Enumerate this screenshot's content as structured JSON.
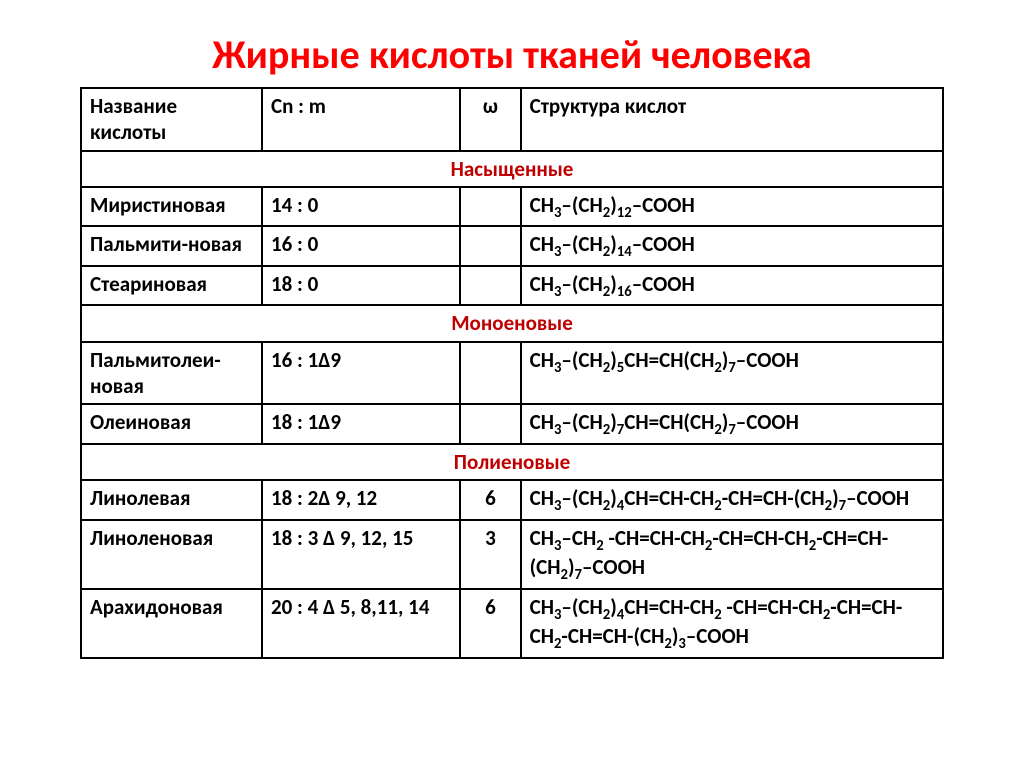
{
  "colors": {
    "title": "#ff0000",
    "section": "#c00000",
    "text": "#000000",
    "border": "#000000",
    "background": "#ffffff"
  },
  "typography": {
    "title_fontsize": 40,
    "cell_fontsize": 21,
    "font_family": "Calibri, Arial, sans-serif",
    "font_weight": 700
  },
  "layout": {
    "col_widths_pct": [
      21,
      23,
      7,
      49
    ],
    "page_padding": "30px 80px 20px 80px"
  },
  "title": "Жирные кислоты тканей человека",
  "headers": {
    "name": "Название кислоты",
    "cnm": "Cn : m",
    "omega": "ω",
    "structure": "Структура кислот"
  },
  "sections": [
    {
      "label": "Насыщенные",
      "rows": [
        {
          "name": "Миристиновая",
          "cnm": "14 : 0",
          "omega": "",
          "structure": "CH<sub>3</sub>–(CH<sub>2</sub>)<sub>12</sub>–COOH"
        },
        {
          "name": "Пальмити-новая",
          "cnm": "16 : 0",
          "omega": "",
          "structure": "CH<sub>3</sub>–(CH<sub>2</sub>)<sub>14</sub>–COOH"
        },
        {
          "name": "Стеариновая",
          "cnm": "18 : 0",
          "omega": "",
          "structure": "CH<sub>3</sub>–(CH<sub>2</sub>)<sub>16</sub>–COOH"
        }
      ]
    },
    {
      "label": "Моноеновые",
      "rows": [
        {
          "name": "Пальмитолеи-новая",
          "cnm": "16 : 1Δ9",
          "omega": "",
          "structure": "CH<sub>3</sub>–(CH<sub>2</sub>)<sub>5</sub>CH=CH(CH<sub>2</sub>)<sub>7</sub>–COOH"
        },
        {
          "name": "Олеиновая",
          "cnm": "18 : 1Δ9",
          "omega": "",
          "structure": "CH<sub>3</sub>–(CH<sub>2</sub>)<sub>7</sub>CH=CH(CH<sub>2</sub>)<sub>7</sub>–COOH"
        }
      ]
    },
    {
      "label": "Полиеновые",
      "rows": [
        {
          "name": "Линолевая",
          "cnm": "18 : 2Δ 9, 12",
          "omega": "6",
          "structure": "CH<sub>3</sub>–(CH<sub>2</sub>)<sub>4</sub>CH=CH-CH<sub>2</sub>-CH=CH-(CH<sub>2</sub>)<sub>7</sub>–COOH"
        },
        {
          "name": "Линоленовая",
          "cnm": "18 : 3 Δ 9, 12, 15",
          "omega": "3",
          "structure": "CH<sub>3</sub>–CH<sub>2</sub> -CH=CH-CH<sub>2</sub>-CH=CH-CH<sub>2</sub>-CH=CH-(CH<sub>2</sub>)<sub>7</sub>–COOH"
        },
        {
          "name": "Арахидоновая",
          "cnm": "20 : 4 Δ 5, 8,11, 14",
          "omega": "6",
          "structure": "CH<sub>3</sub>–(CH<sub>2</sub>)<sub>4</sub>CH=CH-CH<sub>2</sub> -CH=CH-CH<sub>2</sub>-CH=CH-CH<sub>2</sub>-CH=CH-(CH<sub>2</sub>)<sub>3</sub>–COOH"
        }
      ]
    }
  ]
}
